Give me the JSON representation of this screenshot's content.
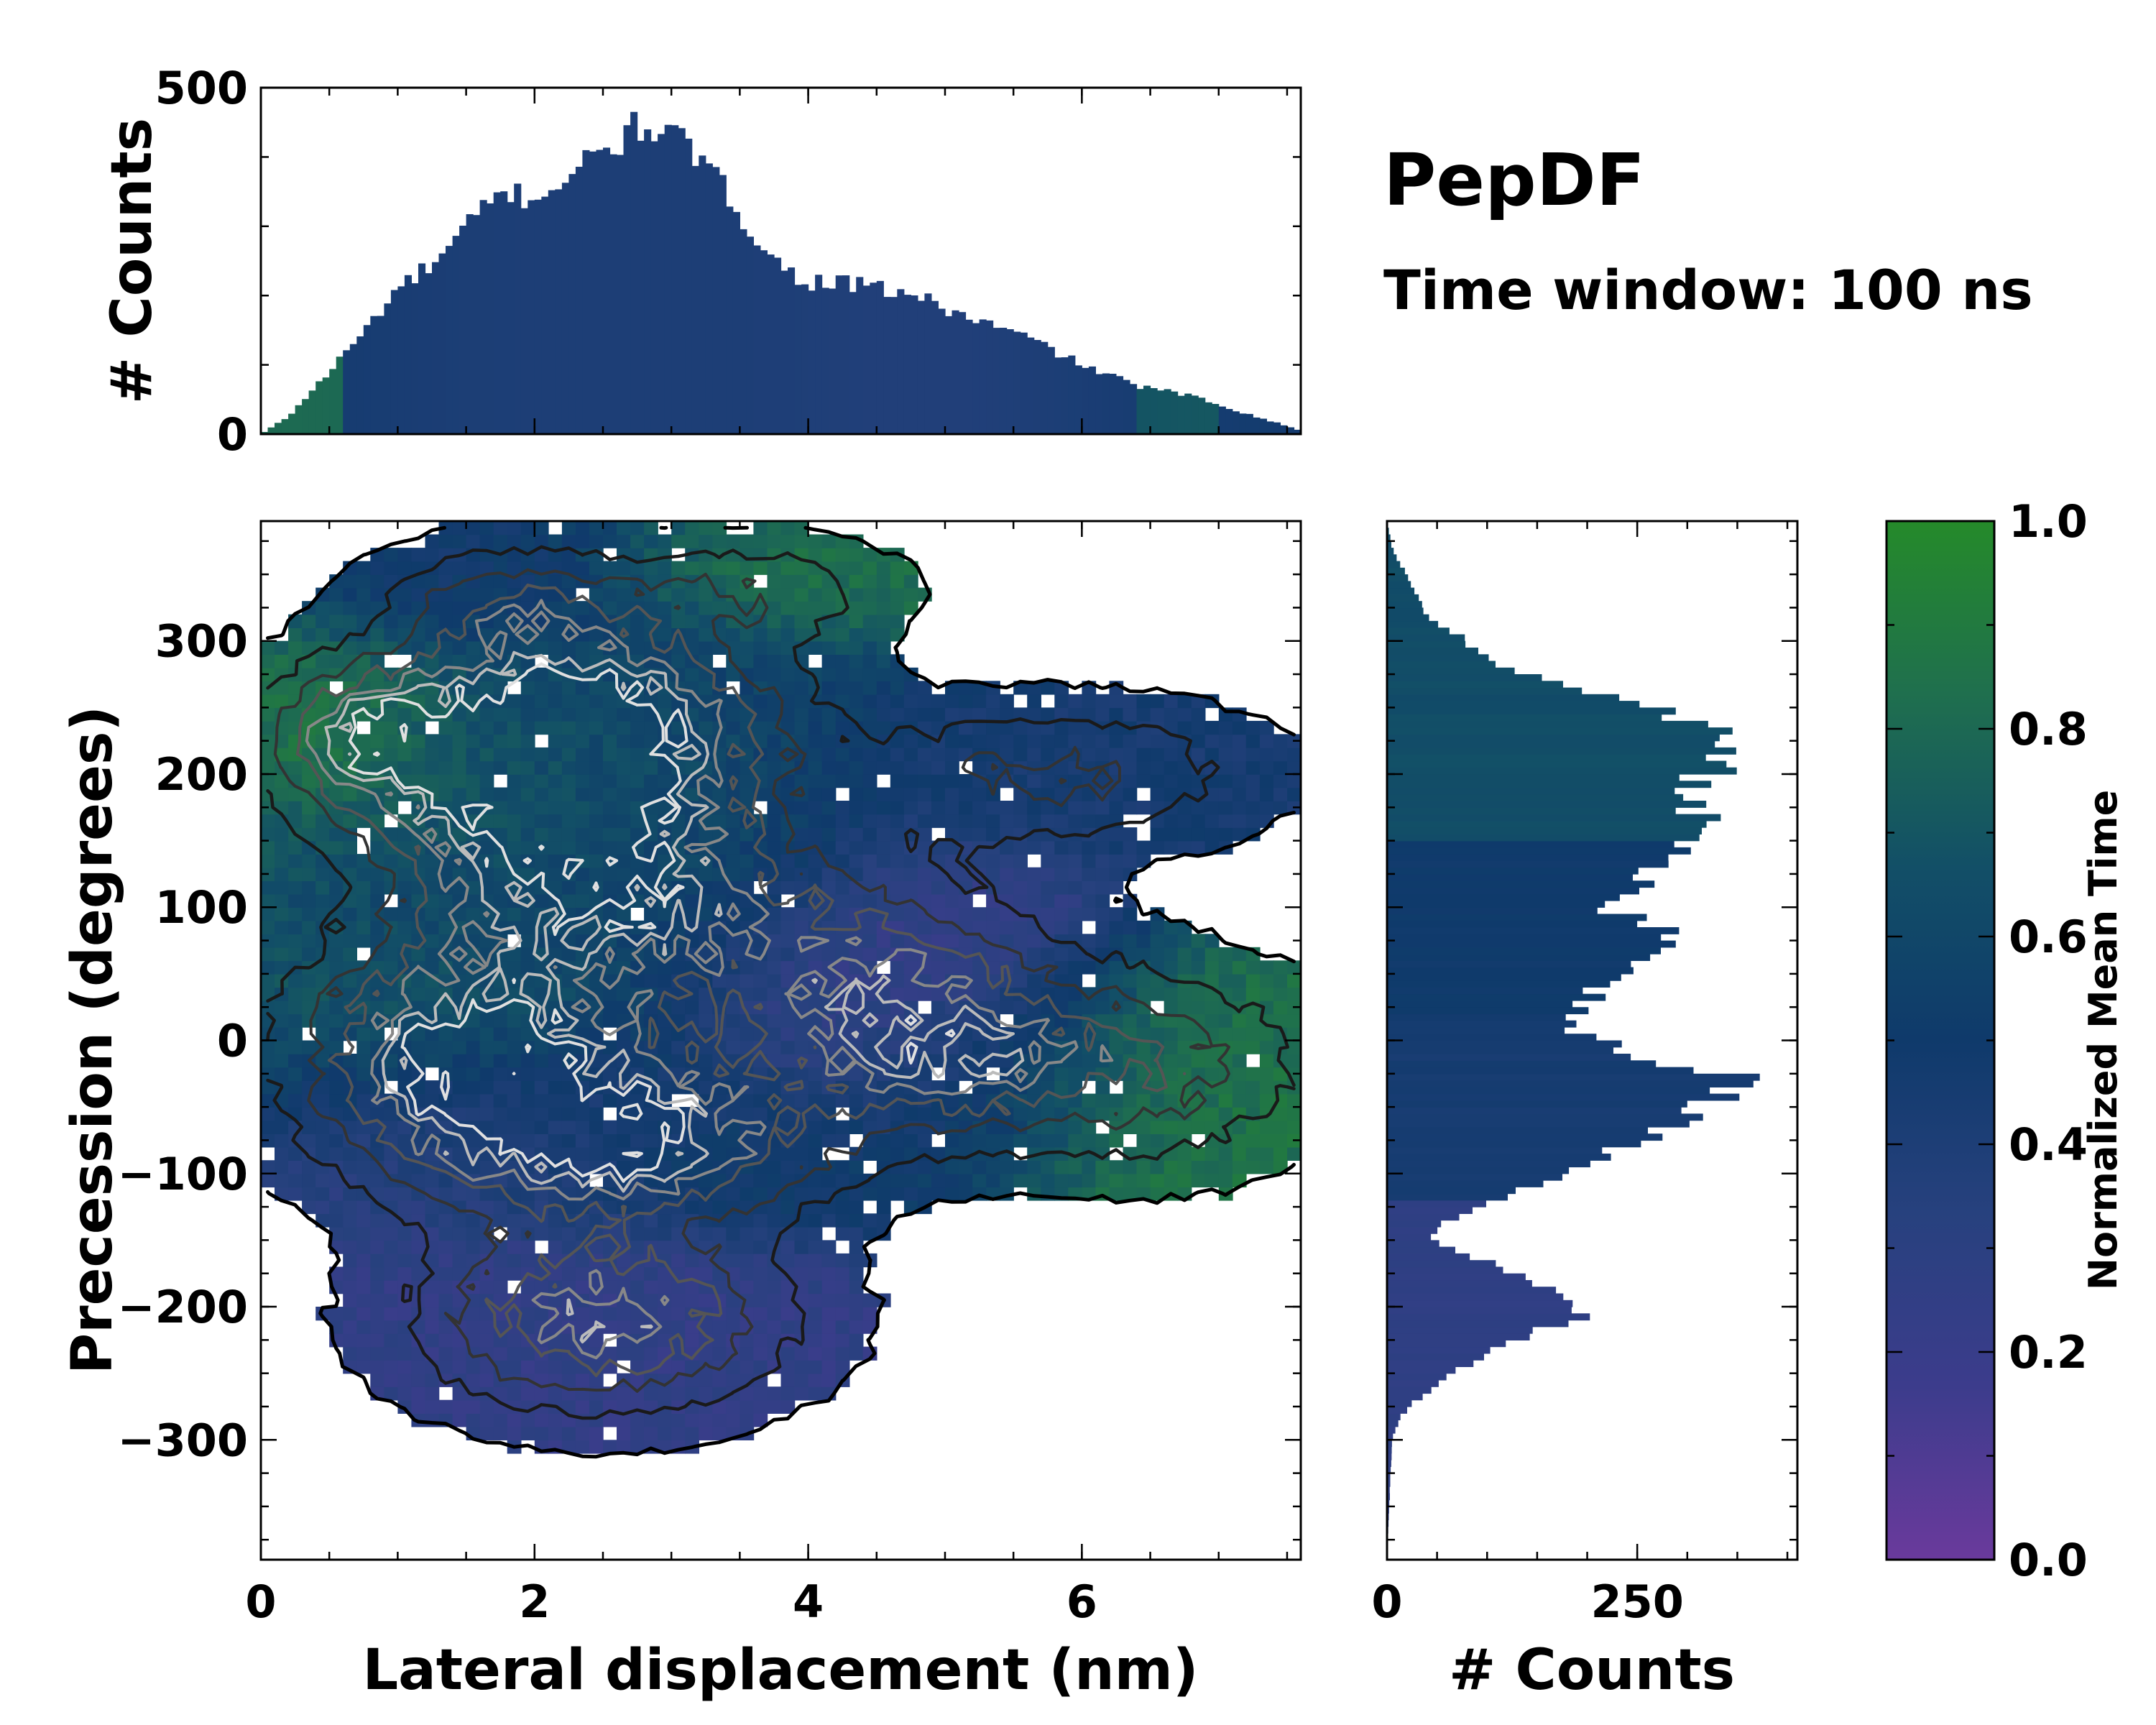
{
  "title": "PepDF",
  "subtitle": "Time window: 100 ns",
  "chart_data": [
    {
      "id": "joint",
      "type": "heatmap",
      "description_overlay": "contour lines of point density",
      "xlabel": "Lateral displacement (nm)",
      "ylabel": "Precession (degrees)",
      "xlim": [
        0,
        7.6
      ],
      "ylim": [
        -390,
        390
      ],
      "xticks": [
        0,
        2,
        4,
        6
      ],
      "xtick_labels": [
        "0",
        "2",
        "4",
        "6"
      ],
      "yticks": [
        -300,
        -200,
        -100,
        0,
        100,
        200,
        300
      ],
      "ytick_labels": [
        "−300",
        "−200",
        "−100",
        "0",
        "100",
        "200",
        "300"
      ],
      "clusters": [
        {
          "x": 1.8,
          "y": 210,
          "sx": 0.9,
          "sy": 55,
          "w": 1.0,
          "t": 0.72
        },
        {
          "x": 2.6,
          "y": 240,
          "sx": 0.9,
          "sy": 55,
          "w": 0.9,
          "t": 0.55
        },
        {
          "x": 2.5,
          "y": 110,
          "sx": 1.0,
          "sy": 50,
          "w": 1.0,
          "t": 0.58
        },
        {
          "x": 0.7,
          "y": 230,
          "sx": 0.45,
          "sy": 35,
          "w": 0.7,
          "t": 0.92
        },
        {
          "x": 1.5,
          "y": 10,
          "sx": 0.9,
          "sy": 45,
          "w": 0.9,
          "t": 0.7
        },
        {
          "x": 4.5,
          "y": 40,
          "sx": 0.9,
          "sy": 55,
          "w": 0.8,
          "t": 0.2
        },
        {
          "x": 5.8,
          "y": 200,
          "sx": 1.0,
          "sy": 35,
          "w": 0.55,
          "t": 0.45
        },
        {
          "x": 6.5,
          "y": -20,
          "sx": 0.8,
          "sy": 50,
          "w": 0.6,
          "t": 0.85
        },
        {
          "x": 1.8,
          "y": -60,
          "sx": 0.9,
          "sy": 45,
          "w": 0.9,
          "t": 0.3
        },
        {
          "x": 3.0,
          "y": -80,
          "sx": 0.9,
          "sy": 40,
          "w": 0.8,
          "t": 0.55
        },
        {
          "x": 2.5,
          "y": -210,
          "sx": 0.9,
          "sy": 45,
          "w": 1.0,
          "t": 0.25
        },
        {
          "x": 3.6,
          "y": 340,
          "sx": 0.7,
          "sy": 25,
          "w": 0.4,
          "t": 0.85
        },
        {
          "x": 1.8,
          "y": 330,
          "sx": 0.6,
          "sy": 30,
          "w": 0.5,
          "t": 0.45
        },
        {
          "x": 5.0,
          "y": -20,
          "sx": 0.7,
          "sy": 40,
          "w": 0.55,
          "t": 0.5
        }
      ]
    },
    {
      "id": "top-hist",
      "type": "bar",
      "ylabel": "# Counts",
      "ylim": [
        0,
        500
      ],
      "xlim": [
        0,
        7.6
      ],
      "yticks": [
        0,
        500
      ],
      "ytick_labels": [
        "0",
        "500"
      ],
      "bin_width": 0.05,
      "profile_x": [
        0.0,
        0.2,
        0.5,
        0.8,
        1.0,
        1.3,
        1.6,
        1.8,
        2.0,
        2.3,
        2.6,
        2.8,
        3.0,
        3.2,
        3.5,
        3.8,
        4.0,
        4.2,
        4.5,
        4.8,
        5.0,
        5.3,
        5.6,
        6.0,
        6.4,
        6.8,
        7.2,
        7.6
      ],
      "profile_y": [
        0,
        25,
        90,
        160,
        210,
        250,
        320,
        350,
        340,
        380,
        420,
        450,
        430,
        400,
        320,
        240,
        220,
        220,
        210,
        200,
        180,
        160,
        140,
        100,
        70,
        55,
        30,
        5
      ]
    },
    {
      "id": "right-hist",
      "type": "bar",
      "orientation": "horizontal",
      "xlabel": "# Counts",
      "xlim": [
        0,
        410
      ],
      "ylim": [
        -390,
        390
      ],
      "xticks": [
        0,
        250
      ],
      "xtick_labels": [
        "0",
        "250"
      ],
      "bin_width": 5,
      "profile_y": [
        -390,
        -300,
        -280,
        -250,
        -220,
        -205,
        -180,
        -150,
        -135,
        -120,
        -100,
        -80,
        -50,
        -30,
        -10,
        10,
        30,
        50,
        80,
        100,
        130,
        160,
        190,
        210,
        230,
        250,
        280,
        320,
        370,
        390
      ],
      "profile_x": [
        0,
        5,
        15,
        60,
        140,
        200,
        150,
        40,
        60,
        110,
        170,
        240,
        320,
        360,
        250,
        180,
        200,
        230,
        280,
        220,
        270,
        320,
        300,
        340,
        330,
        260,
        120,
        40,
        5,
        0
      ]
    },
    {
      "id": "colorbar",
      "type": "heatmap",
      "label": "Normalized Mean Time",
      "vlim": [
        0.0,
        1.0
      ],
      "ticks": [
        0.0,
        0.2,
        0.4,
        0.6,
        0.8,
        1.0
      ],
      "tick_labels": [
        "0.0",
        "0.2",
        "0.4",
        "0.6",
        "0.8",
        "1.0"
      ],
      "colormap_stops": [
        "#6a3a9c",
        "#3c3c8c",
        "#27417e",
        "#0f3a6b",
        "#124f67",
        "#1f6f4e",
        "#258a2a"
      ]
    }
  ]
}
